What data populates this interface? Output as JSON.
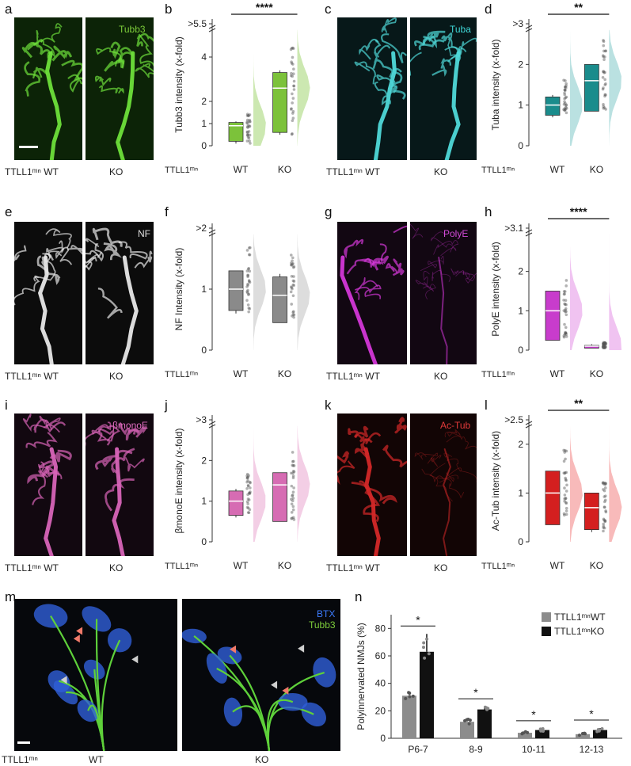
{
  "panels": {
    "a": {
      "label": "a",
      "channel": "Tubb3",
      "channel_color": "#7ccc3a",
      "fill": "#1b5c0c",
      "stroke": "#6ee03a",
      "label_cond_left": "TTLL1ᵐⁿ WT",
      "label_cond_right": "KO"
    },
    "c": {
      "label": "c",
      "channel": "Tuba",
      "channel_color": "#3fd6d6",
      "fill": "#0b3b3f",
      "stroke": "#4fd8d8",
      "label_cond_left": "TTLL1ᵐⁿ WT",
      "label_cond_right": "KO"
    },
    "e": {
      "label": "e",
      "channel": "NF",
      "channel_color": "#e0e0e0",
      "fill": "#1a1a1a",
      "stroke": "#e8e8e8",
      "label_cond_left": "TTLL1ᵐⁿ WT",
      "label_cond_right": "KO"
    },
    "g": {
      "label": "g",
      "channel": "PolyE",
      "channel_color": "#d24bd8",
      "fill": "#2a0c2c",
      "stroke": "#d437d8",
      "label_cond_left": "TTLL1ᵐⁿ WT",
      "label_cond_right": "KO"
    },
    "i": {
      "label": "i",
      "channel": "βmonoE",
      "channel_color": "#e06cc0",
      "fill": "#2c0d24",
      "stroke": "#d864b8",
      "label_cond_left": "TTLL1ᵐⁿ WT",
      "label_cond_right": "KO"
    },
    "k": {
      "label": "k",
      "channel": "Ac-Tub",
      "channel_color": "#e23a3a",
      "fill": "#2c0606",
      "stroke": "#d42828",
      "label_cond_left": "TTLL1ᵐⁿ WT",
      "label_cond_right": "KO"
    },
    "m": {
      "label": "m",
      "channel_top": "BTX",
      "channel_top_color": "#3d7cff",
      "channel_bottom": "Tubb3",
      "channel_bottom_color": "#7ccc3a",
      "label_genotype": "TTLL1ᵐⁿ",
      "label_wt": "WT",
      "label_ko": "KO"
    }
  },
  "chart_data": [
    {
      "panel": "b",
      "type": "box",
      "ylabel": "Tubb3 intensity (x-fold)",
      "xprefix": "TTLL1ᵐⁿ",
      "categories": [
        "WT",
        "KO"
      ],
      "yticks": [
        "0",
        "1",
        "2",
        "4",
        ">5.5"
      ],
      "ytick_values": [
        0,
        1,
        2,
        4,
        5.5
      ],
      "color": "#7cc23a",
      "light": "#bfe29e",
      "boxes": [
        {
          "min": 0.1,
          "q1": 0.2,
          "median": 0.9,
          "q3": 1.05,
          "max": 1.1
        },
        {
          "min": 0.5,
          "q1": 0.6,
          "median": 2.6,
          "q3": 3.3,
          "max": 3.4
        }
      ],
      "significance": "****"
    },
    {
      "panel": "d",
      "type": "box",
      "ylabel": "Tuba intensity (x-fold)",
      "xprefix": "TTLL1ᵐⁿ",
      "categories": [
        "WT",
        "KO"
      ],
      "yticks": [
        "0",
        "1",
        "2",
        ">3"
      ],
      "ytick_values": [
        0,
        1,
        2,
        3
      ],
      "color": "#1a8c8c",
      "light": "#a9d9d9",
      "boxes": [
        {
          "min": 0.7,
          "q1": 0.75,
          "median": 1.0,
          "q3": 1.2,
          "max": 1.25
        },
        {
          "min": 0.85,
          "q1": 0.85,
          "median": 1.6,
          "q3": 2.0,
          "max": 2.0
        }
      ],
      "significance": "**"
    },
    {
      "panel": "f",
      "type": "box",
      "ylabel": "NF Intensity (x-fold)",
      "xprefix": "TTLL1ᵐⁿ",
      "categories": [
        "WT",
        "KO"
      ],
      "yticks": [
        "0",
        "1",
        ">2"
      ],
      "ytick_values": [
        0,
        1,
        2
      ],
      "color": "#8a8a8a",
      "light": "#d5d5d5",
      "boxes": [
        {
          "min": 0.6,
          "q1": 0.65,
          "median": 1.0,
          "q3": 1.3,
          "max": 1.3
        },
        {
          "min": 0.45,
          "q1": 0.45,
          "median": 0.9,
          "q3": 1.2,
          "max": 1.25
        }
      ],
      "significance": ""
    },
    {
      "panel": "h",
      "type": "box",
      "ylabel": "PolyE intensity (x-fold)",
      "xprefix": "TTLL1ᵐⁿ",
      "categories": [
        "WT",
        "KO"
      ],
      "yticks": [
        "0",
        "1",
        "2",
        ">3.1"
      ],
      "ytick_values": [
        0,
        1,
        2,
        3.1
      ],
      "color": "#c83ccc",
      "light": "#ecb4ee",
      "boxes": [
        {
          "min": 0.25,
          "q1": 0.25,
          "median": 1.0,
          "q3": 1.5,
          "max": 1.5
        },
        {
          "min": 0.05,
          "q1": 0.05,
          "median": 0.1,
          "q3": 0.12,
          "max": 0.15
        }
      ],
      "significance": "****"
    },
    {
      "panel": "j",
      "type": "box",
      "ylabel": "βmonoE intensity (x-fold)",
      "xprefix": "TTLL1ᵐⁿ",
      "categories": [
        "WT",
        "KO"
      ],
      "yticks": [
        "0",
        "1",
        "2",
        ">3"
      ],
      "ytick_values": [
        0,
        1,
        2,
        3
      ],
      "color": "#d66cb3",
      "light": "#f0c2df",
      "boxes": [
        {
          "min": 0.6,
          "q1": 0.65,
          "median": 1.0,
          "q3": 1.25,
          "max": 1.3
        },
        {
          "min": 0.5,
          "q1": 0.5,
          "median": 1.4,
          "q3": 1.7,
          "max": 1.7
        }
      ],
      "significance": ""
    },
    {
      "panel": "l",
      "type": "box",
      "ylabel": "Ac-Tub intensity (x-fold)",
      "xprefix": "TTLL1ᵐⁿ",
      "categories": [
        "WT",
        "KO"
      ],
      "yticks": [
        "0",
        "1",
        "2",
        ">2.5"
      ],
      "ytick_values": [
        0,
        1,
        2,
        2.5
      ],
      "color": "#d41f1f",
      "light": "#f6a9a9",
      "boxes": [
        {
          "min": 0.35,
          "q1": 0.35,
          "median": 1.0,
          "q3": 1.45,
          "max": 1.45
        },
        {
          "min": 0.2,
          "q1": 0.25,
          "median": 0.7,
          "q3": 1.0,
          "max": 1.0
        }
      ],
      "significance": "**"
    },
    {
      "panel": "n",
      "type": "bar",
      "ylabel": "Polyinnervated NMJs (%)",
      "categories": [
        "P6-7",
        "8-9",
        "10-11",
        "12-13"
      ],
      "yticks": [
        "0",
        "20",
        "40",
        "60",
        "80"
      ],
      "ylim": [
        0,
        90
      ],
      "series": [
        {
          "name": "TTLL1ᵐⁿWT",
          "color": "#8c8c8c",
          "values": [
            31,
            12,
            4,
            3
          ],
          "errors": [
            3,
            2,
            1,
            1
          ]
        },
        {
          "name": "TTLL1ᵐⁿKO",
          "color": "#111111",
          "values": [
            63,
            21,
            6,
            6
          ],
          "errors": [
            13,
            2,
            1,
            1.5
          ]
        }
      ],
      "significance": [
        "*",
        "*",
        "*",
        "*"
      ],
      "legend": "top-right"
    }
  ]
}
